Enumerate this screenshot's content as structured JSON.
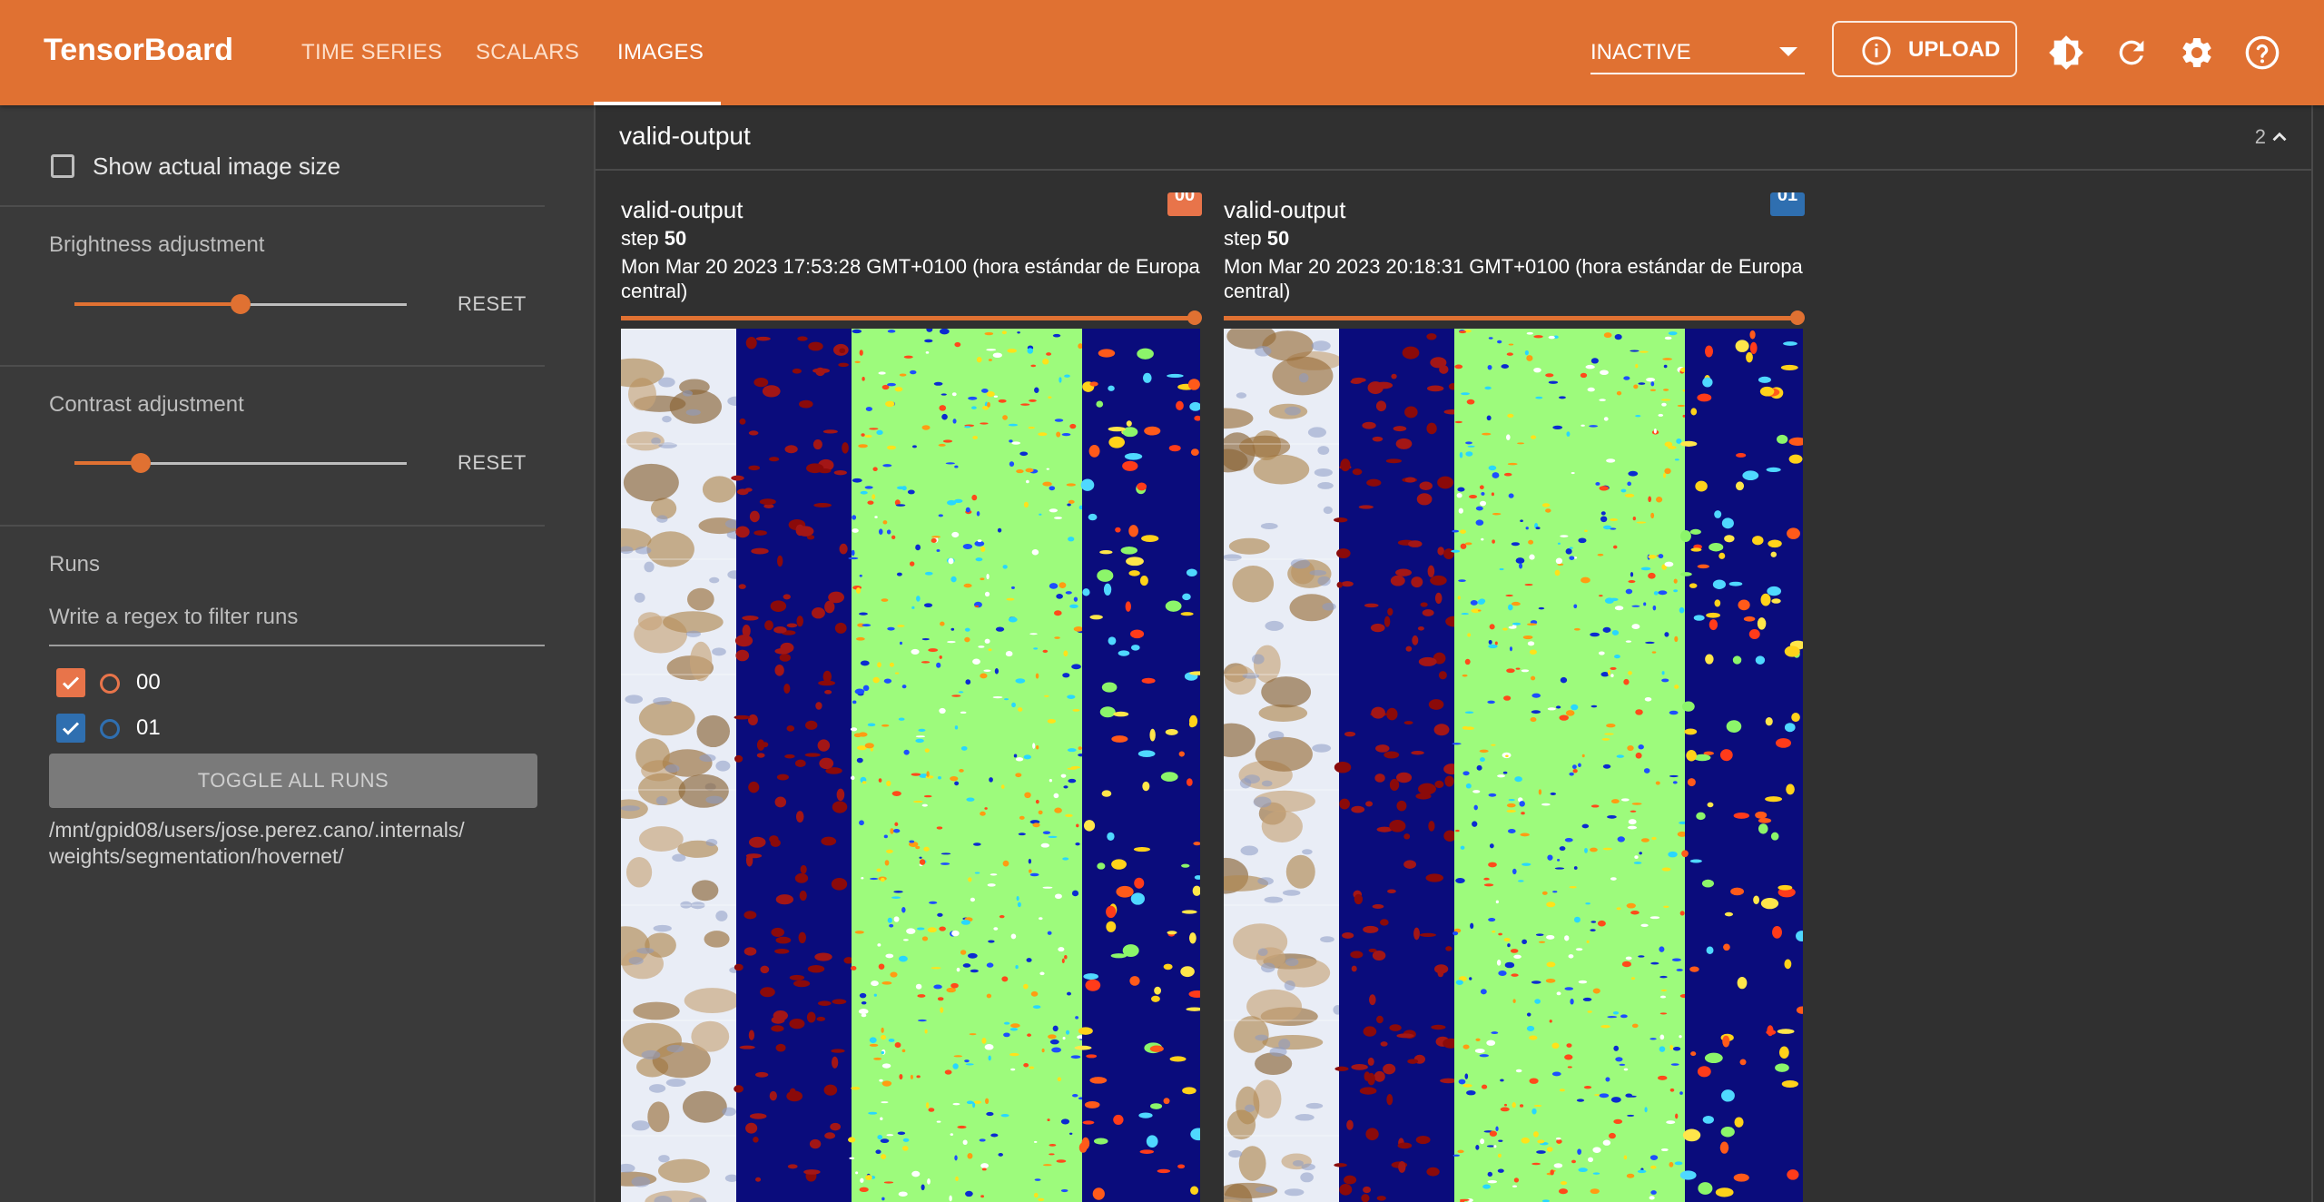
{
  "app": {
    "name": "TensorBoard"
  },
  "nav": {
    "tabs": [
      "TIME SERIES",
      "SCALARS",
      "IMAGES"
    ],
    "active": "IMAGES"
  },
  "toolbar": {
    "status_select": "INACTIVE",
    "upload_label": "UPLOAD"
  },
  "sidebar": {
    "show_actual_size_label": "Show actual image size",
    "brightness": {
      "label": "Brightness adjustment",
      "level": 0.5,
      "reset_label": "RESET"
    },
    "contrast": {
      "label": "Contrast adjustment",
      "level": 0.2,
      "reset_label": "RESET"
    },
    "runs_title": "Runs",
    "filter_placeholder": "Write a regex to filter runs",
    "runs": [
      {
        "name": "00",
        "color": "#e8744a",
        "checked": true
      },
      {
        "name": "01",
        "color": "#2f6fb0",
        "checked": true
      }
    ],
    "toggle_all_label": "TOGGLE ALL RUNS",
    "logdir_line1": "/mnt/gpid08/users/jose.perez.cano/.internals/",
    "logdir_line2": "weights/segmentation/hovernet/"
  },
  "group": {
    "title": "valid-output",
    "count": "2"
  },
  "cards": [
    {
      "title": "valid-output",
      "run": "00",
      "run_color": "#e8744a",
      "step_label": "step",
      "step_value": "50",
      "time_line1": "Mon Mar 20 2023 17:53:28 GMT+0100 (hora estándar de Europa",
      "time_line2": "central)"
    },
    {
      "title": "valid-output",
      "run": "01",
      "run_color": "#2f6fb0",
      "step_label": "step",
      "step_value": "50",
      "time_line1": "Mon Mar 20 2023 20:18:31 GMT+0100 (hora estándar de Europa",
      "time_line2": "central)"
    }
  ],
  "colors": {
    "accent": "#e07132",
    "background": "#303030",
    "sidebar": "#3a3a3a"
  },
  "icons": [
    "info-icon",
    "brightness-icon",
    "refresh-icon",
    "settings-icon",
    "help-icon",
    "chevron-up-icon",
    "chevron-down-icon",
    "checkbox-icon"
  ]
}
